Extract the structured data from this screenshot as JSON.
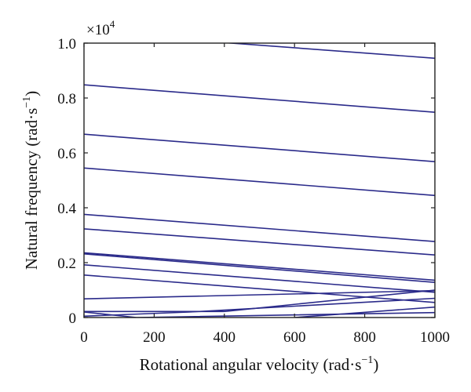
{
  "chart_data": {
    "type": "line",
    "xlabel_main": "Rotational angular velocity (rad·s",
    "xlabel_sup": "−1",
    "xlabel_end": ")",
    "ylabel_main": "Natural frequency (rad·s",
    "ylabel_sup": "−1",
    "ylabel_end": ")",
    "multiplier_base": "×10",
    "multiplier_exp": "4",
    "xlim": [
      0,
      1000
    ],
    "ylim": [
      0,
      1.0
    ],
    "x_ticks": [
      0,
      200,
      400,
      600,
      800,
      1000
    ],
    "x_tick_labels": [
      "0",
      "200",
      "400",
      "600",
      "800",
      "1000"
    ],
    "y_ticks": [
      0,
      0.2,
      0.4,
      0.6,
      0.8,
      1.0
    ],
    "y_tick_labels": [
      "0",
      "0.2",
      "0.4",
      "0.6",
      "0.8",
      "1.0"
    ],
    "grid": false,
    "line_color": "#2a2a8a",
    "series": [
      {
        "x": [
          0,
          1000
        ],
        "y": [
          1.04,
          0.945
        ]
      },
      {
        "x": [
          0,
          1000
        ],
        "y": [
          0.848,
          0.748
        ]
      },
      {
        "x": [
          0,
          1000
        ],
        "y": [
          0.668,
          0.568
        ]
      },
      {
        "x": [
          0,
          1000
        ],
        "y": [
          0.545,
          0.445
        ]
      },
      {
        "x": [
          0,
          1000
        ],
        "y": [
          0.376,
          0.277
        ]
      },
      {
        "x": [
          0,
          1000
        ],
        "y": [
          0.323,
          0.228
        ]
      },
      {
        "x": [
          0,
          1000
        ],
        "y": [
          0.236,
          0.136
        ]
      },
      {
        "x": [
          0,
          1000
        ],
        "y": [
          0.232,
          0.128
        ]
      },
      {
        "x": [
          0,
          1000
        ],
        "y": [
          0.192,
          0.092
        ]
      },
      {
        "x": [
          0,
          1000
        ],
        "y": [
          0.155,
          0.055
        ]
      },
      {
        "x": [
          0,
          1000
        ],
        "y": [
          0.068,
          0.098
        ]
      },
      {
        "x": [
          0,
          400,
          1000
        ],
        "y": [
          0.022,
          0.022,
          0.1
        ]
      },
      {
        "x": [
          0,
          300,
          1000
        ],
        "y": [
          0.005,
          0.02,
          0.07
        ]
      },
      {
        "x": [
          0,
          150,
          1000
        ],
        "y": [
          0.02,
          0.0,
          0.018
        ]
      },
      {
        "x": [
          600,
          1000
        ],
        "y": [
          0.0,
          0.038
        ]
      }
    ]
  }
}
